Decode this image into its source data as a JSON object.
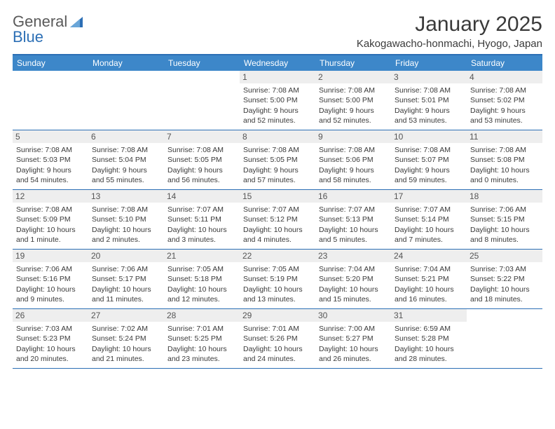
{
  "logo": {
    "text1": "General",
    "text2": "Blue"
  },
  "title": "January 2025",
  "location": "Kakogawacho-honmachi, Hyogo, Japan",
  "colors": {
    "accent": "#3d87c9",
    "rule": "#2c6fb5",
    "daynum_bg": "#eeeeee",
    "text": "#3a3a3a",
    "white": "#ffffff"
  },
  "weekdays": [
    "Sunday",
    "Monday",
    "Tuesday",
    "Wednesday",
    "Thursday",
    "Friday",
    "Saturday"
  ],
  "weeks": [
    [
      {
        "n": "",
        "sr": "",
        "ss": "",
        "dl": ""
      },
      {
        "n": "",
        "sr": "",
        "ss": "",
        "dl": ""
      },
      {
        "n": "",
        "sr": "",
        "ss": "",
        "dl": ""
      },
      {
        "n": "1",
        "sr": "Sunrise: 7:08 AM",
        "ss": "Sunset: 5:00 PM",
        "dl": "Daylight: 9 hours and 52 minutes."
      },
      {
        "n": "2",
        "sr": "Sunrise: 7:08 AM",
        "ss": "Sunset: 5:00 PM",
        "dl": "Daylight: 9 hours and 52 minutes."
      },
      {
        "n": "3",
        "sr": "Sunrise: 7:08 AM",
        "ss": "Sunset: 5:01 PM",
        "dl": "Daylight: 9 hours and 53 minutes."
      },
      {
        "n": "4",
        "sr": "Sunrise: 7:08 AM",
        "ss": "Sunset: 5:02 PM",
        "dl": "Daylight: 9 hours and 53 minutes."
      }
    ],
    [
      {
        "n": "5",
        "sr": "Sunrise: 7:08 AM",
        "ss": "Sunset: 5:03 PM",
        "dl": "Daylight: 9 hours and 54 minutes."
      },
      {
        "n": "6",
        "sr": "Sunrise: 7:08 AM",
        "ss": "Sunset: 5:04 PM",
        "dl": "Daylight: 9 hours and 55 minutes."
      },
      {
        "n": "7",
        "sr": "Sunrise: 7:08 AM",
        "ss": "Sunset: 5:05 PM",
        "dl": "Daylight: 9 hours and 56 minutes."
      },
      {
        "n": "8",
        "sr": "Sunrise: 7:08 AM",
        "ss": "Sunset: 5:05 PM",
        "dl": "Daylight: 9 hours and 57 minutes."
      },
      {
        "n": "9",
        "sr": "Sunrise: 7:08 AM",
        "ss": "Sunset: 5:06 PM",
        "dl": "Daylight: 9 hours and 58 minutes."
      },
      {
        "n": "10",
        "sr": "Sunrise: 7:08 AM",
        "ss": "Sunset: 5:07 PM",
        "dl": "Daylight: 9 hours and 59 minutes."
      },
      {
        "n": "11",
        "sr": "Sunrise: 7:08 AM",
        "ss": "Sunset: 5:08 PM",
        "dl": "Daylight: 10 hours and 0 minutes."
      }
    ],
    [
      {
        "n": "12",
        "sr": "Sunrise: 7:08 AM",
        "ss": "Sunset: 5:09 PM",
        "dl": "Daylight: 10 hours and 1 minute."
      },
      {
        "n": "13",
        "sr": "Sunrise: 7:08 AM",
        "ss": "Sunset: 5:10 PM",
        "dl": "Daylight: 10 hours and 2 minutes."
      },
      {
        "n": "14",
        "sr": "Sunrise: 7:07 AM",
        "ss": "Sunset: 5:11 PM",
        "dl": "Daylight: 10 hours and 3 minutes."
      },
      {
        "n": "15",
        "sr": "Sunrise: 7:07 AM",
        "ss": "Sunset: 5:12 PM",
        "dl": "Daylight: 10 hours and 4 minutes."
      },
      {
        "n": "16",
        "sr": "Sunrise: 7:07 AM",
        "ss": "Sunset: 5:13 PM",
        "dl": "Daylight: 10 hours and 5 minutes."
      },
      {
        "n": "17",
        "sr": "Sunrise: 7:07 AM",
        "ss": "Sunset: 5:14 PM",
        "dl": "Daylight: 10 hours and 7 minutes."
      },
      {
        "n": "18",
        "sr": "Sunrise: 7:06 AM",
        "ss": "Sunset: 5:15 PM",
        "dl": "Daylight: 10 hours and 8 minutes."
      }
    ],
    [
      {
        "n": "19",
        "sr": "Sunrise: 7:06 AM",
        "ss": "Sunset: 5:16 PM",
        "dl": "Daylight: 10 hours and 9 minutes."
      },
      {
        "n": "20",
        "sr": "Sunrise: 7:06 AM",
        "ss": "Sunset: 5:17 PM",
        "dl": "Daylight: 10 hours and 11 minutes."
      },
      {
        "n": "21",
        "sr": "Sunrise: 7:05 AM",
        "ss": "Sunset: 5:18 PM",
        "dl": "Daylight: 10 hours and 12 minutes."
      },
      {
        "n": "22",
        "sr": "Sunrise: 7:05 AM",
        "ss": "Sunset: 5:19 PM",
        "dl": "Daylight: 10 hours and 13 minutes."
      },
      {
        "n": "23",
        "sr": "Sunrise: 7:04 AM",
        "ss": "Sunset: 5:20 PM",
        "dl": "Daylight: 10 hours and 15 minutes."
      },
      {
        "n": "24",
        "sr": "Sunrise: 7:04 AM",
        "ss": "Sunset: 5:21 PM",
        "dl": "Daylight: 10 hours and 16 minutes."
      },
      {
        "n": "25",
        "sr": "Sunrise: 7:03 AM",
        "ss": "Sunset: 5:22 PM",
        "dl": "Daylight: 10 hours and 18 minutes."
      }
    ],
    [
      {
        "n": "26",
        "sr": "Sunrise: 7:03 AM",
        "ss": "Sunset: 5:23 PM",
        "dl": "Daylight: 10 hours and 20 minutes."
      },
      {
        "n": "27",
        "sr": "Sunrise: 7:02 AM",
        "ss": "Sunset: 5:24 PM",
        "dl": "Daylight: 10 hours and 21 minutes."
      },
      {
        "n": "28",
        "sr": "Sunrise: 7:01 AM",
        "ss": "Sunset: 5:25 PM",
        "dl": "Daylight: 10 hours and 23 minutes."
      },
      {
        "n": "29",
        "sr": "Sunrise: 7:01 AM",
        "ss": "Sunset: 5:26 PM",
        "dl": "Daylight: 10 hours and 24 minutes."
      },
      {
        "n": "30",
        "sr": "Sunrise: 7:00 AM",
        "ss": "Sunset: 5:27 PM",
        "dl": "Daylight: 10 hours and 26 minutes."
      },
      {
        "n": "31",
        "sr": "Sunrise: 6:59 AM",
        "ss": "Sunset: 5:28 PM",
        "dl": "Daylight: 10 hours and 28 minutes."
      },
      {
        "n": "",
        "sr": "",
        "ss": "",
        "dl": ""
      }
    ]
  ]
}
